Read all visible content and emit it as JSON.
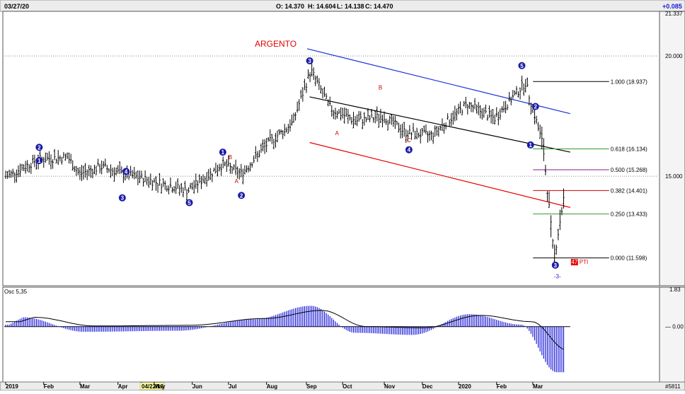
{
  "header": {
    "date": "03/27/20",
    "open": "O: 14.370",
    "high": "H: 14.604",
    "low": "L: 14.138",
    "close": "C: 14.470",
    "change": "+0.085"
  },
  "chart_title": "ARGENTO",
  "price_axis": {
    "top_label": "21.337",
    "labels": [
      {
        "value": 20.0,
        "text": "20.000"
      },
      {
        "value": 15.0,
        "text": "15.000"
      }
    ],
    "range": [
      10.5,
      21.8
    ]
  },
  "fibonacci": [
    {
      "ratio": "1.000",
      "value": 18.937,
      "text": "1.000 (18.937)",
      "color": "#000000"
    },
    {
      "ratio": "0.618",
      "value": 16.134,
      "text": "0.618 (16.134)",
      "color": "#2e9a2e"
    },
    {
      "ratio": "0.500",
      "value": 15.268,
      "text": "0.500 (15.268)",
      "color": "#8b1a8b"
    },
    {
      "ratio": "0.382",
      "value": 14.401,
      "text": "0.382 (14.401)",
      "color": "#cc0000"
    },
    {
      "ratio": "0.250",
      "value": 13.433,
      "text": "0.250 (13.433)",
      "color": "#2e9a2e"
    },
    {
      "ratio": "0.000",
      "value": 11.598,
      "text": "0.000 (11.598)",
      "color": "#000000"
    }
  ],
  "pti": {
    "value": "47",
    "label": "PTI"
  },
  "bottom_wave_label": "-3-",
  "oscillator": {
    "title": "Osc 5,35",
    "top_label": "1.83",
    "zero_label": "0.00"
  },
  "time_axis": [
    {
      "label": "2019",
      "index": 0
    },
    {
      "label": "Feb",
      "index": 21
    },
    {
      "label": "Mar",
      "index": 41
    },
    {
      "label": "Apr",
      "index": 62
    },
    {
      "label": "04/22/19",
      "index": 75,
      "highlight": true
    },
    {
      "label": "May",
      "index": 82
    },
    {
      "label": "Jun",
      "index": 103
    },
    {
      "label": "Jul",
      "index": 123
    },
    {
      "label": "Aug",
      "index": 144
    },
    {
      "label": "Sep",
      "index": 166
    },
    {
      "label": "Oct",
      "index": 186
    },
    {
      "label": "Nov",
      "index": 209
    },
    {
      "label": "Dec",
      "index": 230
    },
    {
      "label": "2020",
      "index": 250
    },
    {
      "label": "Feb",
      "index": 271
    },
    {
      "label": "Mar",
      "index": 291
    }
  ],
  "footer_id": "#5811",
  "colors": {
    "up_channel_blue": "#1a2ed6",
    "channel_black": "#000000",
    "channel_red": "#e60000",
    "wave_blue": "#1a1aa8",
    "wave_red": "#cc0000",
    "osc_bar": "#1a1ad6",
    "date_highlight": "#ffff99"
  },
  "chart_data": {
    "type": "bar",
    "subtype": "ohlc_price_with_oscillator",
    "title": "ARGENTO",
    "x_range": [
      "2019-01",
      "2020-03-27"
    ],
    "last_bar": {
      "date": "03/27/20",
      "open": 14.37,
      "high": 14.604,
      "low": 14.138,
      "close": 14.47
    },
    "approx_closes": [
      {
        "date": "2019-01-02",
        "close": 15.0
      },
      {
        "date": "2019-01-28",
        "close": 15.7
      },
      {
        "date": "2019-02-20",
        "close": 15.8
      },
      {
        "date": "2019-03-01",
        "close": 15.1
      },
      {
        "date": "2019-03-20",
        "close": 15.4
      },
      {
        "date": "2019-04-05",
        "close": 15.1
      },
      {
        "date": "2019-04-22",
        "close": 14.9
      },
      {
        "date": "2019-05-28",
        "close": 14.4
      },
      {
        "date": "2019-06-25",
        "close": 15.5
      },
      {
        "date": "2019-07-10",
        "close": 15.1
      },
      {
        "date": "2019-07-30",
        "close": 16.3
      },
      {
        "date": "2019-08-20",
        "close": 17.2
      },
      {
        "date": "2019-09-04",
        "close": 19.4
      },
      {
        "date": "2019-09-20",
        "close": 17.8
      },
      {
        "date": "2019-10-10",
        "close": 17.3
      },
      {
        "date": "2019-11-01",
        "close": 17.5
      },
      {
        "date": "2019-11-20",
        "close": 16.8
      },
      {
        "date": "2019-12-10",
        "close": 16.7
      },
      {
        "date": "2020-01-08",
        "close": 18.0
      },
      {
        "date": "2020-01-30",
        "close": 17.4
      },
      {
        "date": "2020-02-24",
        "close": 18.9
      },
      {
        "date": "2020-03-09",
        "close": 16.3
      },
      {
        "date": "2020-03-18",
        "close": 11.6
      },
      {
        "date": "2020-03-27",
        "close": 14.47
      }
    ],
    "wave_labels": [
      {
        "text": "2",
        "date": "2019-01-28",
        "price": 16.2,
        "circled": true
      },
      {
        "text": "1",
        "date": "2019-01-28",
        "price": 15.65,
        "circled": true
      },
      {
        "text": "4",
        "date": "2019-04-08",
        "price": 15.2,
        "circled": true
      },
      {
        "text": "3",
        "date": "2019-04-05",
        "price": 14.1,
        "circled": true
      },
      {
        "text": "5",
        "date": "2019-05-29",
        "price": 13.9,
        "circled": true
      },
      {
        "text": "1",
        "date": "2019-06-25",
        "price": 16.0,
        "circled": true
      },
      {
        "text": "2",
        "date": "2019-07-10",
        "price": 14.2,
        "circled": true
      },
      {
        "text": "3",
        "date": "2019-09-03",
        "price": 19.8,
        "circled": true
      },
      {
        "text": "4",
        "date": "2019-11-22",
        "price": 16.1,
        "circled": true
      },
      {
        "text": "5",
        "date": "2020-02-21",
        "price": 19.6,
        "circled": true
      },
      {
        "text": "2",
        "date": "2020-03-03",
        "price": 17.9,
        "circled": true
      },
      {
        "text": "1",
        "date": "2020-02-28",
        "price": 16.3,
        "circled": true
      },
      {
        "text": "3",
        "date": "2020-03-19",
        "price": 11.3,
        "circled": true
      },
      {
        "text": "A",
        "date": "2019-09-25",
        "price": 16.8,
        "circled": false
      },
      {
        "text": "B",
        "date": "2019-10-30",
        "price": 18.7,
        "circled": false
      },
      {
        "text": "C",
        "date": "2019-11-22",
        "price": 16.5,
        "circled": false
      },
      {
        "text": "A",
        "date": "2019-07-06",
        "price": 14.8,
        "circled": false
      },
      {
        "text": "B",
        "date": "2019-07-01",
        "price": 15.8,
        "circled": false
      }
    ],
    "trendlines": [
      {
        "name": "upper",
        "from": {
          "date": "2019-09-01",
          "price": 20.3
        },
        "to": {
          "date": "2020-03-31",
          "price": 17.6
        }
      },
      {
        "name": "middle",
        "from": {
          "date": "2019-09-03",
          "price": 18.3
        },
        "to": {
          "date": "2020-03-31",
          "price": 16.0
        }
      },
      {
        "name": "lower",
        "from": {
          "date": "2019-09-03",
          "price": 16.4
        },
        "to": {
          "date": "2020-03-31",
          "price": 13.7
        }
      }
    ],
    "fibonacci_retracement": {
      "high": 18.937,
      "low": 11.598,
      "levels": [
        {
          "ratio": 1.0,
          "value": 18.937
        },
        {
          "ratio": 0.618,
          "value": 16.134
        },
        {
          "ratio": 0.5,
          "value": 15.268
        },
        {
          "ratio": 0.382,
          "value": 14.401
        },
        {
          "ratio": 0.25,
          "value": 13.433
        },
        {
          "ratio": 0.0,
          "value": 11.598
        }
      ]
    },
    "oscillator": {
      "name": "Osc 5,35",
      "zero_line": 0,
      "approx_values": [
        {
          "date": "2019-01-15",
          "value": 0.45
        },
        {
          "date": "2019-03-05",
          "value": -0.25
        },
        {
          "date": "2019-05-20",
          "value": -0.2
        },
        {
          "date": "2019-07-20",
          "value": 0.35
        },
        {
          "date": "2019-09-04",
          "value": 1.0
        },
        {
          "date": "2019-10-10",
          "value": -0.3
        },
        {
          "date": "2019-11-25",
          "value": -0.4
        },
        {
          "date": "2020-01-10",
          "value": 0.6
        },
        {
          "date": "2020-02-20",
          "value": 0.1
        },
        {
          "date": "2020-03-20",
          "value": -2.2
        }
      ]
    }
  }
}
